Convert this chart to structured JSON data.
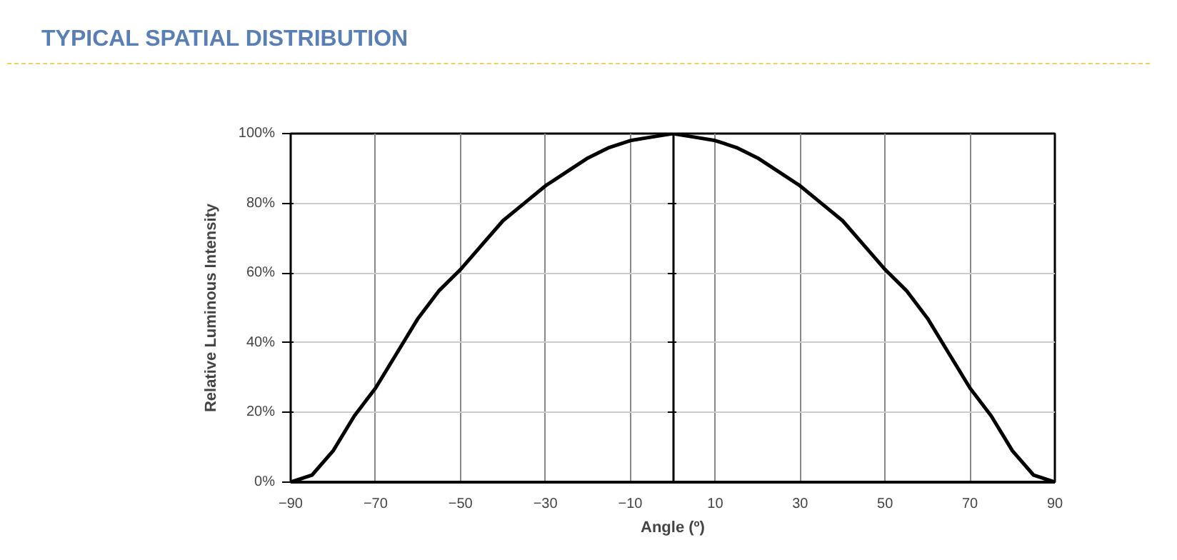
{
  "chart_data": {
    "type": "line",
    "title": "TYPICAL SPATIAL DISTRIBUTION",
    "xlabel": "Angle (º)",
    "ylabel": "Relative Luminous Intensity",
    "x": [
      -90,
      -85,
      -80,
      -75,
      -70,
      -65,
      -60,
      -55,
      -50,
      -45,
      -40,
      -35,
      -30,
      -25,
      -20,
      -15,
      -10,
      -5,
      0,
      5,
      10,
      15,
      20,
      25,
      30,
      35,
      40,
      45,
      50,
      55,
      60,
      65,
      70,
      75,
      80,
      85,
      90
    ],
    "series": [
      {
        "color": "#000000",
        "values": [
          0,
          0.02,
          0.09,
          0.19,
          0.27,
          0.37,
          0.47,
          0.55,
          0.61,
          0.68,
          0.75,
          0.8,
          0.85,
          0.89,
          0.93,
          0.96,
          0.98,
          0.99,
          1,
          0.99,
          0.98,
          0.96,
          0.93,
          0.89,
          0.85,
          0.8,
          0.75,
          0.68,
          0.61,
          0.55,
          0.47,
          0.37,
          0.27,
          0.19,
          0.09,
          0.02,
          0
        ]
      }
    ],
    "xlim": [
      -90,
      90
    ],
    "xticks": [
      -90,
      -70,
      -50,
      -30,
      -10,
      10,
      30,
      50,
      70,
      90
    ],
    "ylim": [
      0,
      1
    ],
    "yticks": [
      {
        "value": 0,
        "label": "0%"
      },
      {
        "value": 0.2,
        "label": "20%"
      },
      {
        "value": 0.4,
        "label": "40%"
      },
      {
        "value": 0.6,
        "label": "60%"
      },
      {
        "value": 0.8,
        "label": "80%"
      },
      {
        "value": 1,
        "label": "100%"
      }
    ],
    "grid": true,
    "marker": "none",
    "line_style": "solid"
  }
}
